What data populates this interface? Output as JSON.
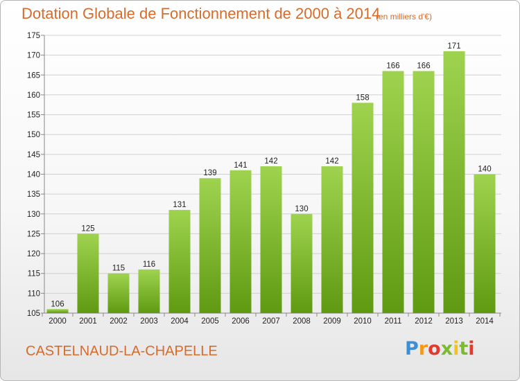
{
  "header": {
    "title": "Dotation Globale de Fonctionnement de 2000 à 2014",
    "subtitle": "(en milliers d'€)"
  },
  "footer": {
    "commune": "CASTELNAUD-LA-CHAPELLE",
    "logo_text": "Proxiti"
  },
  "colors": {
    "bar_top": "#9fd34f",
    "bar_bottom": "#5f9a12",
    "title": "#d86a2a",
    "grid": "#d0d0d0"
  },
  "chart_data": {
    "type": "bar",
    "title": "Dotation Globale de Fonctionnement de 2000 à 2014",
    "subtitle": "(en milliers d'€)",
    "categories": [
      "2000",
      "2001",
      "2002",
      "2003",
      "2004",
      "2005",
      "2006",
      "2007",
      "2008",
      "2009",
      "2010",
      "2011",
      "2012",
      "2013",
      "2014"
    ],
    "values": [
      106,
      125,
      115,
      116,
      131,
      139,
      141,
      142,
      130,
      142,
      158,
      166,
      166,
      171,
      140
    ],
    "ylim": [
      105,
      175
    ],
    "yticks": [
      105,
      110,
      115,
      120,
      125,
      130,
      135,
      140,
      145,
      150,
      155,
      160,
      165,
      170,
      175
    ],
    "grid": true,
    "data_labels": true
  }
}
